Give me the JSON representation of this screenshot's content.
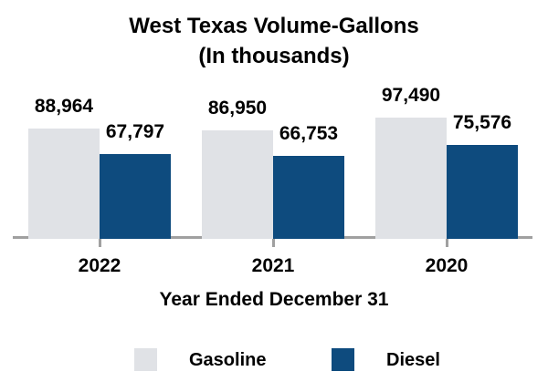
{
  "chart_data": {
    "type": "bar",
    "title": "West Texas Volume-Gallons",
    "subtitle": "(In thousands)",
    "xlabel": "Year Ended December 31",
    "categories": [
      "2022",
      "2021",
      "2020"
    ],
    "series": [
      {
        "name": "Gasoline",
        "color": "#E0E2E6",
        "values": [
          88964,
          86950,
          97490
        ],
        "labels": [
          "88,964",
          "86,950",
          "97,490"
        ]
      },
      {
        "name": "Diesel",
        "color": "#0E4B7E",
        "values": [
          67797,
          66753,
          75576
        ],
        "labels": [
          "67,797",
          "66,753",
          "75,576"
        ]
      }
    ],
    "ylim": [
      0,
      105000
    ],
    "grid": false,
    "legend_position": "bottom",
    "axis_color": "#A0A0A0",
    "text_color": "#000000",
    "background": "#FFFFFF"
  }
}
